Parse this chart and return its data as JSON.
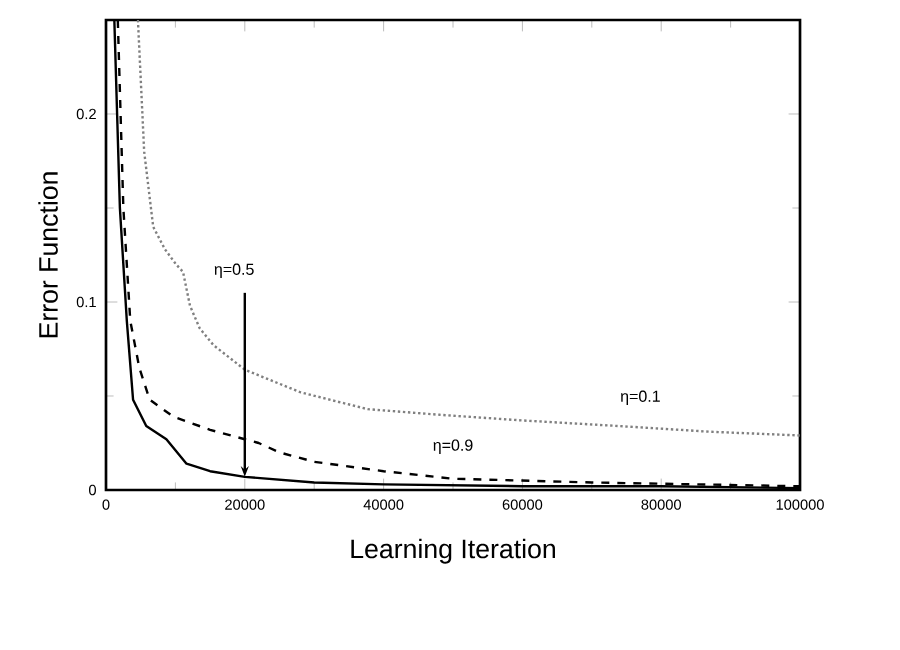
{
  "chart_data": {
    "type": "line",
    "xlabel": "Learning Iteration",
    "ylabel": "Error Function",
    "xlim": [
      0,
      100000
    ],
    "ylim": [
      0,
      0.25
    ],
    "xticks": [
      0,
      20000,
      40000,
      60000,
      80000,
      100000
    ],
    "yticks": [
      0,
      0.1,
      0.2
    ],
    "series": [
      {
        "color": "#000000",
        "line_style": "solid",
        "x": [
          1200,
          2000,
          3000,
          3900,
          5800,
          8700,
          11600,
          15000,
          20000,
          30000,
          40000,
          60000,
          80000,
          100000
        ],
        "values": [
          0.25,
          0.15,
          0.09,
          0.048,
          0.034,
          0.027,
          0.014,
          0.01,
          0.007,
          0.004,
          0.003,
          0.002,
          0.002,
          0.001
        ]
      },
      {
        "color": "#000000",
        "line_style": "dashed",
        "x": [
          1700,
          2500,
          3500,
          4800,
          6300,
          9700,
          15000,
          20000,
          22000,
          25000,
          30000,
          40000,
          50000,
          70000,
          100000
        ],
        "values": [
          0.25,
          0.15,
          0.09,
          0.065,
          0.048,
          0.039,
          0.032,
          0.027,
          0.025,
          0.02,
          0.015,
          0.01,
          0.006,
          0.004,
          0.002
        ]
      },
      {
        "color": "#808080",
        "line_style": "dotted",
        "x": [
          4600,
          5500,
          6800,
          8500,
          10100,
          11100,
          12100,
          13500,
          15500,
          20000,
          28000,
          37700,
          48100,
          60000,
          74000,
          87000,
          100000
        ],
        "values": [
          0.25,
          0.18,
          0.14,
          0.128,
          0.12,
          0.116,
          0.098,
          0.086,
          0.077,
          0.064,
          0.052,
          0.043,
          0.04,
          0.037,
          0.034,
          0.031,
          0.029
        ]
      }
    ],
    "annotations": [
      {
        "text": "η=0.5",
        "x": 20000,
        "y": 0.007
      },
      {
        "text": "η=0.9",
        "x": 50000,
        "y": 0.006
      },
      {
        "text": "η=0.1",
        "x": 77000,
        "y": 0.032
      }
    ]
  }
}
